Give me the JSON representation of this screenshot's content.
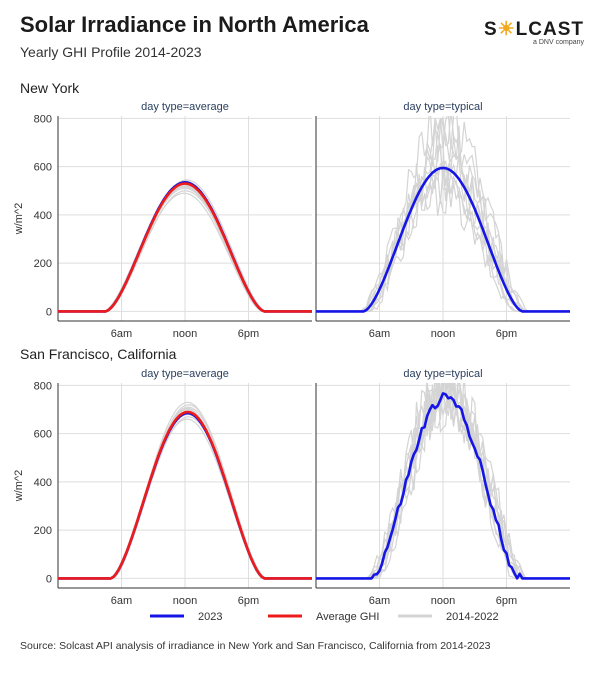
{
  "header": {
    "title": "Solar Irradiance in North America",
    "subtitle": "Yearly GHI Profile 2014-2023",
    "logo_text": "S  LCAST",
    "logo_sub": "a DNV company"
  },
  "source": "Source: Solcast API analysis of irradiance in New York and San Francisco, California from 2014-2023",
  "colors": {
    "series_2023": "#1515e6",
    "series_avg": "#ee1b1b",
    "series_hist": "#d4d4d4",
    "grid": "#dedede",
    "axis": "#333333",
    "logo_accent": "#f2a81d"
  },
  "legend": [
    {
      "name": "2023",
      "color": "#1515e6"
    },
    {
      "name": "Average GHI",
      "color": "#ee1b1b"
    },
    {
      "name": "2014-2022",
      "color": "#d4d4d4"
    }
  ],
  "chart_data": [
    {
      "type": "line",
      "location": "New York",
      "title": "day type=average",
      "ylabel": "w/m^2",
      "xlim": [
        0,
        24
      ],
      "ylim": [
        -40,
        810
      ],
      "x_ticks": [
        {
          "x": 6,
          "label": "6am"
        },
        {
          "x": 12,
          "label": "noon"
        },
        {
          "x": 18,
          "label": "6pm"
        }
      ],
      "y_ticks": [
        0,
        200,
        400,
        600,
        800
      ],
      "grid": true,
      "sunrise": 4.5,
      "sunset": 19.5,
      "series": [
        {
          "name": "Average GHI",
          "peak": 530
        },
        {
          "name": "2023",
          "peak": 535
        },
        {
          "name": "2014-2022",
          "peaks": [
            490,
            520,
            545,
            510,
            540,
            500,
            525,
            535,
            515
          ]
        }
      ]
    },
    {
      "type": "line",
      "location": "New York",
      "title": "day type=typical",
      "ylabel": "",
      "xlim": [
        0,
        24
      ],
      "ylim": [
        -40,
        810
      ],
      "x_ticks": [
        {
          "x": 6,
          "label": "6am"
        },
        {
          "x": 12,
          "label": "noon"
        },
        {
          "x": 18,
          "label": "6pm"
        }
      ],
      "y_ticks": [
        0,
        200,
        400,
        600,
        800
      ],
      "grid": true,
      "sunrise": 4.5,
      "sunset": 19.5,
      "series": [
        {
          "name": "2023",
          "peak": 595
        },
        {
          "name": "2014-2022",
          "peaks": [
            780,
            700,
            650,
            560,
            620,
            480,
            720,
            540,
            600
          ]
        }
      ]
    },
    {
      "type": "line",
      "location": "San Francisco, California",
      "title": "day type=average",
      "ylabel": "w/m^2",
      "xlim": [
        0,
        24
      ],
      "ylim": [
        -40,
        810
      ],
      "x_ticks": [
        {
          "x": 6,
          "label": "6am"
        },
        {
          "x": 12,
          "label": "noon"
        },
        {
          "x": 18,
          "label": "6pm"
        }
      ],
      "y_ticks": [
        0,
        200,
        400,
        600,
        800
      ],
      "grid": true,
      "sunrise": 5.0,
      "sunset": 19.5,
      "series": [
        {
          "name": "Average GHI",
          "peak": 690
        },
        {
          "name": "2023",
          "peak": 685
        },
        {
          "name": "2014-2022",
          "peaks": [
            660,
            700,
            730,
            680,
            710,
            670,
            720,
            690,
            705
          ]
        }
      ]
    },
    {
      "type": "line",
      "location": "San Francisco, California",
      "title": "day type=typical",
      "ylabel": "",
      "xlim": [
        0,
        24
      ],
      "ylim": [
        -40,
        810
      ],
      "x_ticks": [
        {
          "x": 6,
          "label": "6am"
        },
        {
          "x": 12,
          "label": "noon"
        },
        {
          "x": 18,
          "label": "6pm"
        }
      ],
      "y_ticks": [
        0,
        200,
        400,
        600,
        800
      ],
      "grid": true,
      "sunrise": 5.2,
      "sunset": 19.3,
      "series": [
        {
          "name": "2023",
          "peak": 750
        },
        {
          "name": "2014-2022",
          "peaks": [
            820,
            780,
            760,
            800,
            740,
            790,
            770,
            810,
            750
          ]
        }
      ]
    }
  ]
}
